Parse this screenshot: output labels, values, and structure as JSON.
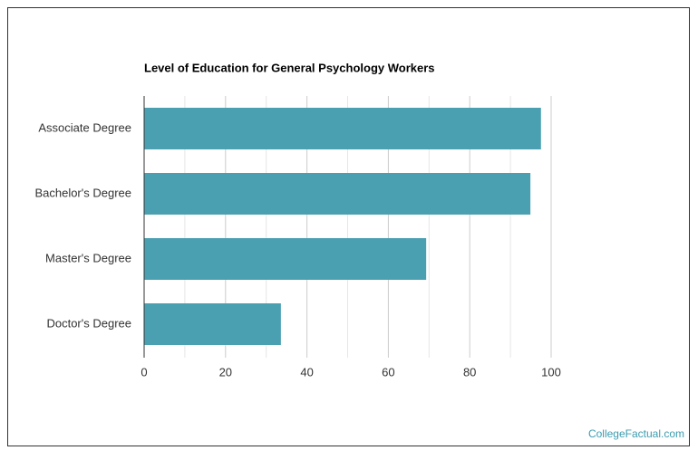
{
  "chart_data": {
    "type": "barh",
    "title": "Level of Education for General Psychology Workers",
    "categories": [
      "Associate Degree",
      "Bachelor's Degree",
      "Master's Degree",
      "Doctor's Degree"
    ],
    "values": [
      97.5,
      94.9,
      69.3,
      33.6
    ],
    "color": "#4a9fb1",
    "xlim": [
      0,
      100
    ],
    "xticks": [
      0,
      20,
      40,
      60,
      80,
      100
    ],
    "minor_xticks": [
      10,
      30,
      50,
      70,
      90
    ],
    "grid": true
  },
  "footer": {
    "source": "CollegeFactual.com"
  }
}
